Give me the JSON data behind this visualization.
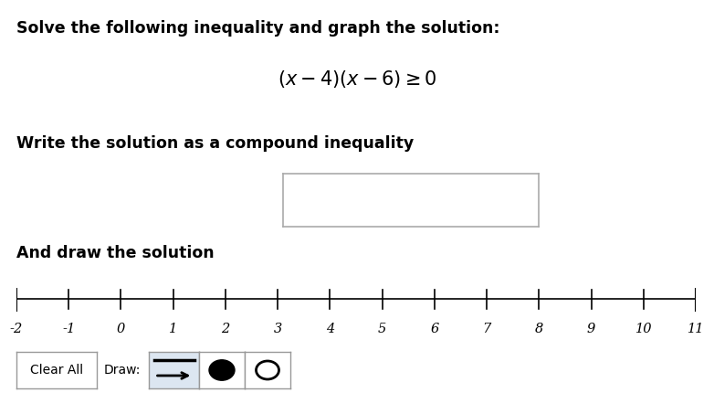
{
  "title_line1": "Solve the following inequality and graph the solution:",
  "instruction1": "Write the solution as a compound inequality",
  "instruction2": "And draw the solution",
  "number_line_ticks": [
    -2,
    -1,
    0,
    1,
    2,
    3,
    4,
    5,
    6,
    7,
    8,
    9,
    10,
    11
  ],
  "tick_labels": [
    "-2",
    "-1",
    "0",
    "1",
    "2",
    "3",
    "4",
    "5",
    "6",
    "7",
    "8",
    "9",
    "10",
    "11"
  ],
  "background_color": "#ffffff",
  "text_color": "#000000",
  "button_bg": "#dce6f1",
  "button_border": "#999999",
  "input_box_border": "#aaaaaa",
  "title_fontsize": 12.5,
  "formula_fontsize": 15,
  "body_fontsize": 12.5,
  "tick_fontsize": 10.5,
  "btn_fontsize": 10
}
